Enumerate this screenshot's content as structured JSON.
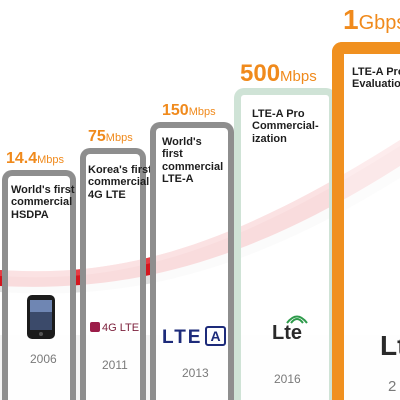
{
  "milestones": [
    {
      "speed_value": "14.4",
      "speed_unit": "Mbps",
      "description": "World's first\ncommercial\nHSDPA",
      "year": "2006",
      "logo": "smartphone-icon"
    },
    {
      "speed_value": "75",
      "speed_unit": "Mbps",
      "description": "Korea's first\ncommercial\n4G LTE",
      "year": "2011",
      "logo": "4g-lte-logo",
      "logo_text": "4G LTE"
    },
    {
      "speed_value": "150",
      "speed_unit": "Mbps",
      "description": "World's\nfirst\ncommercial\nLTE-A",
      "year": "2013",
      "logo": "lte-a-logo",
      "logo_text": "LTE",
      "logo_badge": "A"
    },
    {
      "speed_value": "500",
      "speed_unit": "Mbps",
      "description": "LTE-A Pro\nCommercial-\nization",
      "year": "2016",
      "logo": "lte-logo",
      "logo_text": "Lte"
    },
    {
      "speed_value": "1",
      "speed_unit": "Gbps",
      "description": "LTE-A Pro\nEvaluation",
      "year": "2",
      "logo": "lte-logo-partial",
      "logo_text": "Lt"
    }
  ],
  "colors": {
    "speed_orange": "#f08a1c",
    "card_gray": "#8e8e8e",
    "card_mint": "#cfe3d6",
    "card_orange": "#f0901f",
    "curve_red": "#d4161e",
    "year_gray": "#7a7a7a"
  }
}
